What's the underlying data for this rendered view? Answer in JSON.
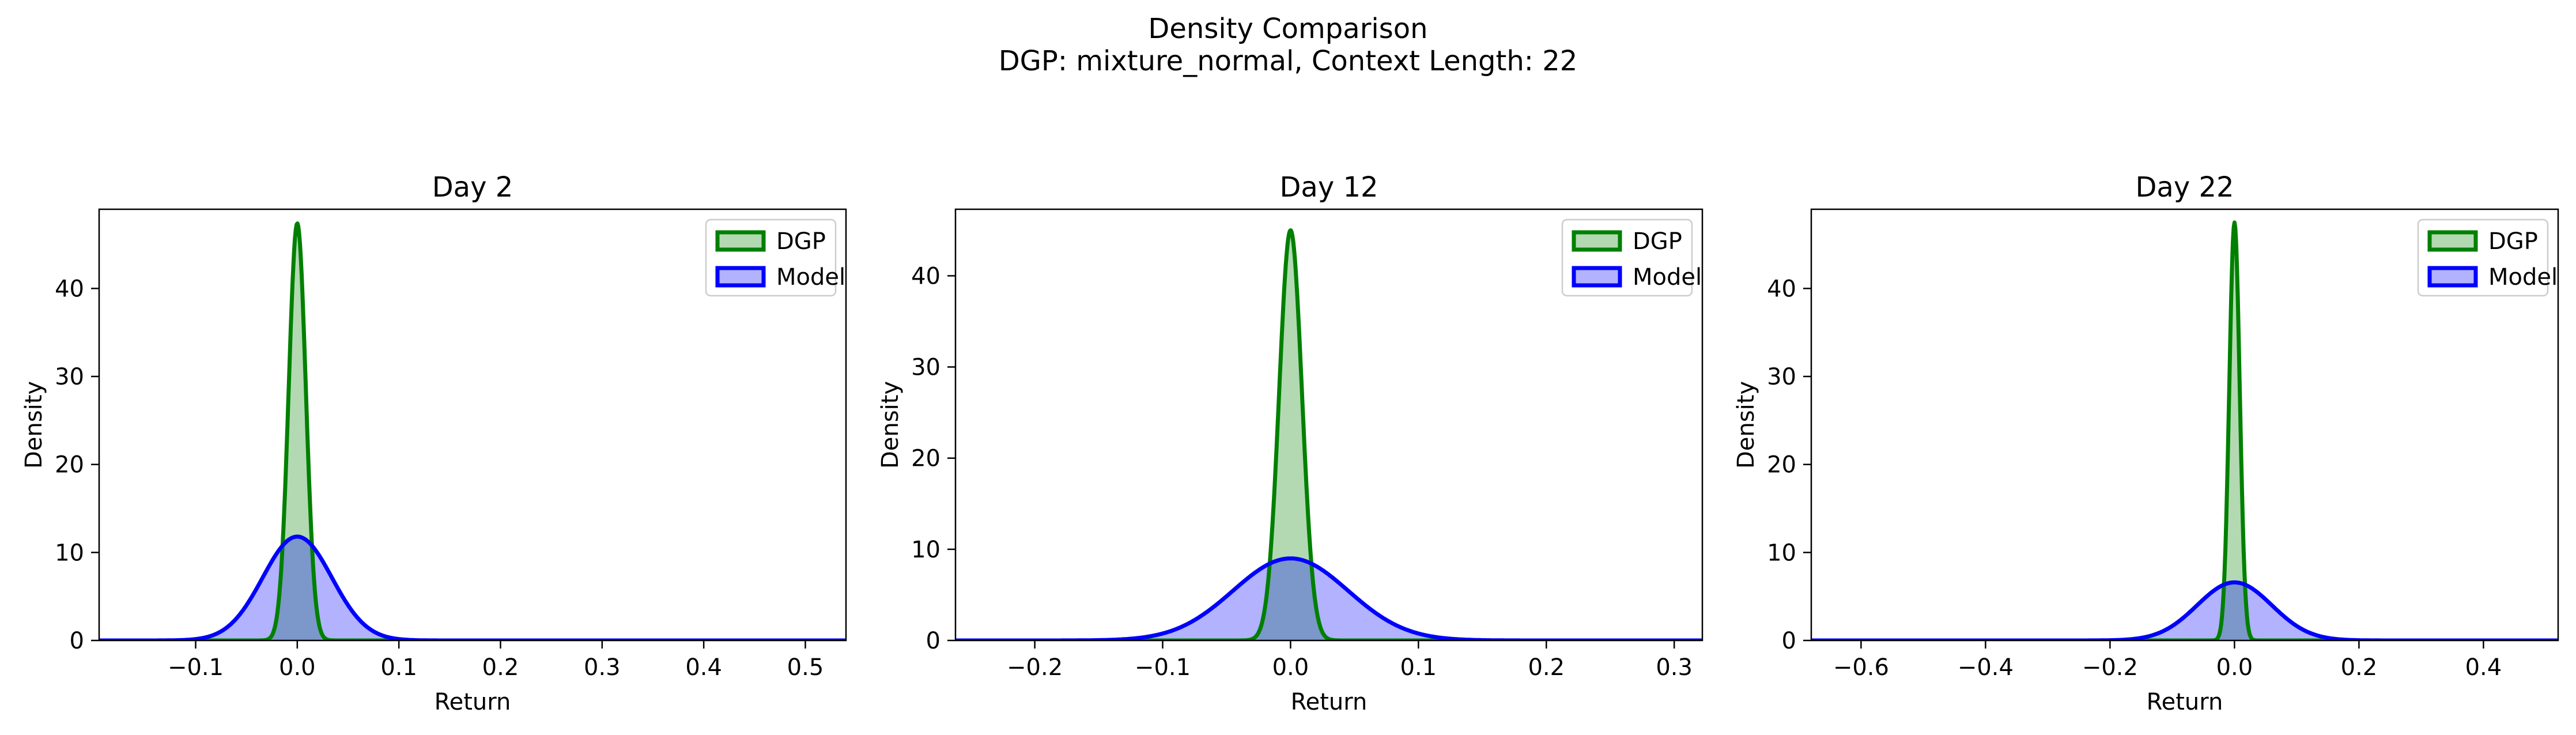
{
  "figure": {
    "title_line1": "Density Comparison",
    "title_line2": "DGP: mixture_normal, Context Length: 22"
  },
  "chart_data": [
    {
      "type": "area",
      "title": "Day 2",
      "xlabel": "Return",
      "ylabel": "Density",
      "xlim": [
        -0.195,
        0.54
      ],
      "ylim": [
        0,
        49
      ],
      "xticks": [
        -0.1,
        0.0,
        0.1,
        0.2,
        0.3,
        0.4,
        0.5
      ],
      "xtick_labels": [
        "−0.1",
        "0.0",
        "0.1",
        "0.2",
        "0.3",
        "0.4",
        "0.5"
      ],
      "yticks": [
        0,
        10,
        20,
        30,
        40
      ],
      "ytick_labels": [
        "0",
        "10",
        "20",
        "30",
        "40"
      ],
      "grid": false,
      "legend_position": "top-right",
      "series": [
        {
          "name": "DGP",
          "color": "#008000",
          "fill": "#b2d8b2",
          "mean": 0.0,
          "std": 0.0084,
          "peak": 47.4
        },
        {
          "name": "Model",
          "color": "#0000ff",
          "fill": "#b2b2ff",
          "mean": 0.0,
          "std": 0.034,
          "peak": 11.8
        }
      ]
    },
    {
      "type": "area",
      "title": "Day 12",
      "xlabel": "Return",
      "ylabel": "Density",
      "xlim": [
        -0.262,
        0.322
      ],
      "ylim": [
        0,
        47.3
      ],
      "xticks": [
        -0.2,
        -0.1,
        0.0,
        0.1,
        0.2,
        0.3
      ],
      "xtick_labels": [
        "−0.2",
        "−0.1",
        "0.0",
        "0.1",
        "0.2",
        "0.3"
      ],
      "yticks": [
        0,
        10,
        20,
        30,
        40
      ],
      "ytick_labels": [
        "0",
        "10",
        "20",
        "30",
        "40"
      ],
      "grid": false,
      "legend_position": "top-right",
      "series": [
        {
          "name": "DGP",
          "color": "#008000",
          "fill": "#b2d8b2",
          "mean": 0.0,
          "std": 0.0089,
          "peak": 45.0
        },
        {
          "name": "Model",
          "color": "#0000ff",
          "fill": "#b2b2ff",
          "mean": 0.0,
          "std": 0.045,
          "peak": 9.0
        }
      ]
    },
    {
      "type": "area",
      "title": "Day 22",
      "xlabel": "Return",
      "ylabel": "Density",
      "xlim": [
        -0.68,
        0.52
      ],
      "ylim": [
        0,
        49
      ],
      "xticks": [
        -0.6,
        -0.4,
        -0.2,
        0.0,
        0.2,
        0.4
      ],
      "xtick_labels": [
        "−0.6",
        "−0.4",
        "−0.2",
        "0.0",
        "0.2",
        "0.4"
      ],
      "yticks": [
        0,
        10,
        20,
        30,
        40
      ],
      "ytick_labels": [
        "0",
        "10",
        "20",
        "30",
        "40"
      ],
      "grid": false,
      "legend_position": "top-right",
      "series": [
        {
          "name": "DGP",
          "color": "#008000",
          "fill": "#b2d8b2",
          "mean": 0.0,
          "std": 0.0084,
          "peak": 47.5
        },
        {
          "name": "Model",
          "color": "#0000ff",
          "fill": "#b2b2ff",
          "mean": 0.0,
          "std": 0.06,
          "peak": 6.6
        }
      ]
    }
  ]
}
